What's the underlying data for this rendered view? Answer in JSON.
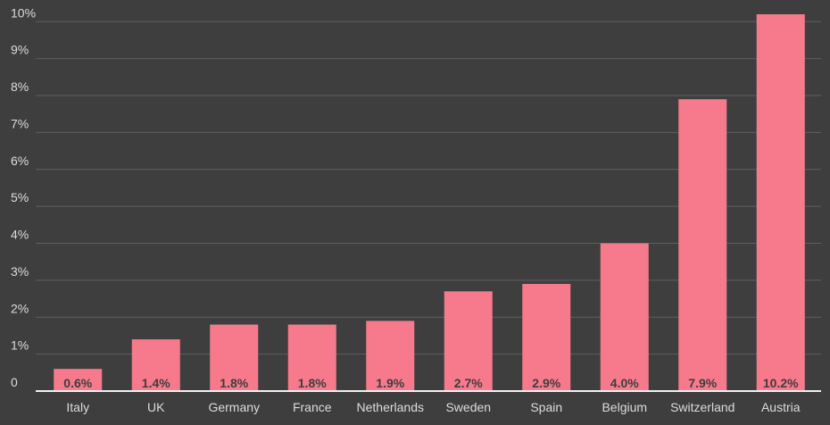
{
  "chart_data": {
    "type": "bar",
    "categories": [
      "Italy",
      "UK",
      "Germany",
      "France",
      "Netherlands",
      "Sweden",
      "Spain",
      "Belgium",
      "Switzerland",
      "Austria"
    ],
    "values": [
      0.6,
      1.4,
      1.8,
      1.8,
      1.9,
      2.7,
      2.9,
      4.0,
      7.9,
      10.2
    ],
    "value_labels": [
      "0.6%",
      "1.4%",
      "1.8%",
      "1.8%",
      "1.9%",
      "2.7%",
      "2.9%",
      "4.0%",
      "7.9%",
      "10.2%"
    ],
    "color": "#f67a8b",
    "ylim": [
      0,
      10.2
    ],
    "yticks": [
      0,
      {
        "value": 1,
        "label": "1%"
      },
      {
        "value": 2,
        "label": "2%"
      },
      {
        "value": 3,
        "label": "3%"
      },
      {
        "value": 4,
        "label": "4%"
      },
      {
        "value": 5,
        "label": "5%"
      },
      {
        "value": 6,
        "label": "6%"
      },
      {
        "value": 7,
        "label": "7%"
      },
      {
        "value": 8,
        "label": "8%"
      },
      {
        "value": 9,
        "label": "9%"
      },
      {
        "value": 10,
        "label": "10%"
      }
    ],
    "grid": true
  }
}
